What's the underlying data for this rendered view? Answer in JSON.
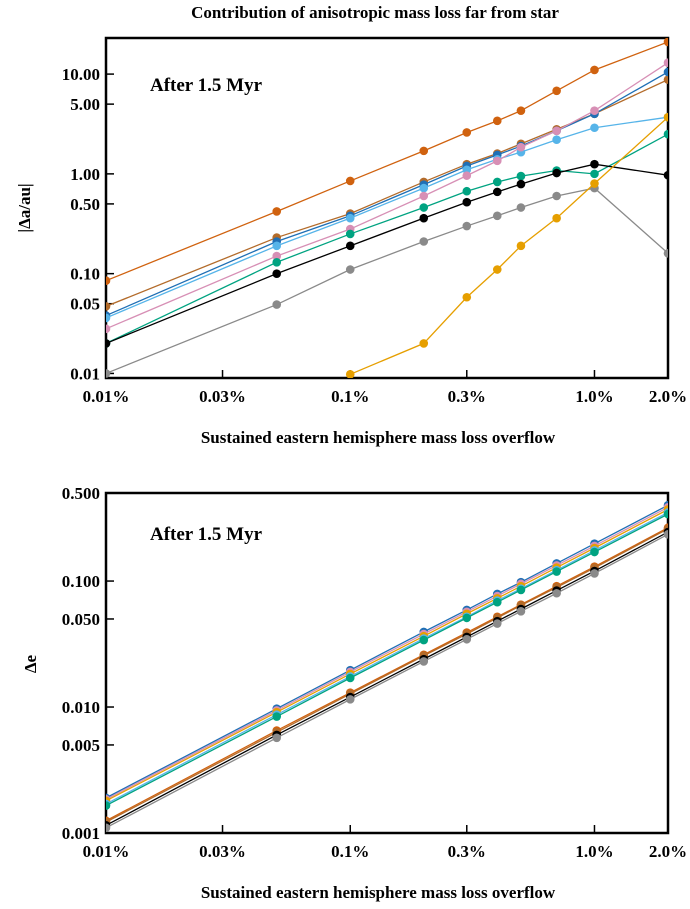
{
  "figure": {
    "title": "Contribution of anisotropic mass loss far from star"
  },
  "chart_data": [
    {
      "type": "line",
      "xscale": "log",
      "yscale": "log",
      "xlim": [
        0.01,
        2.0
      ],
      "ylim": [
        0.009,
        23
      ],
      "xticks": [
        0.01,
        0.03,
        0.1,
        0.3,
        1.0,
        2.0
      ],
      "xtick_labels": [
        "0.01%",
        "0.03%",
        "0.1%",
        "0.3%",
        "1.0%",
        "2.0%"
      ],
      "yticks": [
        0.01,
        0.05,
        0.1,
        0.5,
        1.0,
        5.0,
        10.0
      ],
      "ytick_labels": [
        "0.01",
        "0.05",
        "0.10",
        "0.50",
        "1.00",
        "5.00",
        "10.00"
      ],
      "xlabel": "Sustained eastern hemisphere mass loss overflow",
      "ylabel": "|Δa/au|",
      "annotation": "After 1.5 Myr",
      "grid": false,
      "series": [
        {
          "color": "#d0620f",
          "x": [
            0.01,
            0.05,
            0.1,
            0.2,
            0.3,
            0.4,
            0.5,
            0.7,
            1.0,
            2.0
          ],
          "y": [
            0.085,
            0.42,
            0.85,
            1.7,
            2.6,
            3.4,
            4.3,
            6.8,
            11.0,
            21.0
          ]
        },
        {
          "color": "#b36b2a",
          "x": [
            0.01,
            0.05,
            0.1,
            0.2,
            0.3,
            0.4,
            0.5,
            0.7,
            1.0,
            2.0
          ],
          "y": [
            0.047,
            0.23,
            0.4,
            0.83,
            1.25,
            1.6,
            2.0,
            2.8,
            4.0,
            8.8
          ]
        },
        {
          "color": "#1f6fb5",
          "x": [
            0.01,
            0.05,
            0.1,
            0.2,
            0.3,
            0.4,
            0.5,
            0.7,
            1.0,
            2.0
          ],
          "y": [
            0.038,
            0.21,
            0.38,
            0.78,
            1.2,
            1.55,
            1.9,
            2.7,
            4.0,
            10.5
          ]
        },
        {
          "color": "#56b4e9",
          "x": [
            0.01,
            0.05,
            0.1,
            0.2,
            0.3,
            0.4,
            0.5,
            0.7,
            1.0,
            2.0
          ],
          "y": [
            0.036,
            0.19,
            0.36,
            0.72,
            1.1,
            1.4,
            1.65,
            2.2,
            2.9,
            3.7
          ]
        },
        {
          "color": "#d78fb5",
          "x": [
            0.01,
            0.05,
            0.1,
            0.2,
            0.3,
            0.4,
            0.5,
            0.7,
            1.0,
            2.0
          ],
          "y": [
            0.028,
            0.15,
            0.28,
            0.6,
            0.96,
            1.35,
            1.85,
            2.7,
            4.3,
            13.0
          ]
        },
        {
          "color": "#00a381",
          "x": [
            0.01,
            0.05,
            0.1,
            0.2,
            0.3,
            0.4,
            0.5,
            0.7,
            1.0,
            2.0
          ],
          "y": [
            0.02,
            0.13,
            0.25,
            0.46,
            0.67,
            0.83,
            0.95,
            1.08,
            1.0,
            2.5
          ]
        },
        {
          "color": "#000000",
          "x": [
            0.01,
            0.05,
            0.1,
            0.2,
            0.3,
            0.4,
            0.5,
            0.7,
            1.0,
            2.0
          ],
          "y": [
            0.02,
            0.1,
            0.19,
            0.36,
            0.52,
            0.66,
            0.79,
            1.02,
            1.25,
            0.97
          ]
        },
        {
          "color": "#8a8a8a",
          "x": [
            0.01,
            0.05,
            0.1,
            0.2,
            0.3,
            0.4,
            0.5,
            0.7,
            1.0,
            2.0
          ],
          "y": [
            0.01,
            0.049,
            0.11,
            0.21,
            0.3,
            0.38,
            0.46,
            0.6,
            0.72,
            0.16
          ]
        },
        {
          "color": "#e69f00",
          "x": [
            0.1,
            0.2,
            0.3,
            0.4,
            0.5,
            0.7,
            1.0,
            2.0
          ],
          "y": [
            0.0098,
            0.02,
            0.058,
            0.11,
            0.19,
            0.36,
            0.8,
            3.7
          ]
        }
      ]
    },
    {
      "type": "line",
      "xscale": "log",
      "yscale": "log",
      "xlim": [
        0.01,
        2.0
      ],
      "ylim": [
        0.001,
        0.5
      ],
      "xticks": [
        0.01,
        0.03,
        0.1,
        0.3,
        1.0,
        2.0
      ],
      "xtick_labels": [
        "0.01%",
        "0.03%",
        "0.1%",
        "0.3%",
        "1.0%",
        "2.0%"
      ],
      "yticks": [
        0.001,
        0.005,
        0.01,
        0.05,
        0.1,
        0.5
      ],
      "ytick_labels": [
        "0.001",
        "0.005",
        "0.010",
        "0.050",
        "0.100",
        "0.500"
      ],
      "xlabel": "Sustained eastern hemisphere mass loss overflow",
      "ylabel": "Δe",
      "annotation": "After 1.5 Myr",
      "grid": false,
      "series": [
        {
          "color": "#1f6fb5",
          "x": [
            0.01,
            0.05,
            0.1,
            0.2,
            0.3,
            0.4,
            0.5,
            0.7,
            1.0,
            2.0
          ],
          "y": [
            0.0019,
            0.0097,
            0.0196,
            0.0395,
            0.059,
            0.079,
            0.098,
            0.138,
            0.198,
            0.4
          ]
        },
        {
          "color": "#d78fb5",
          "x": [
            0.01,
            0.05,
            0.1,
            0.2,
            0.3,
            0.4,
            0.5,
            0.7,
            1.0,
            2.0
          ],
          "y": [
            0.00185,
            0.0094,
            0.019,
            0.038,
            0.057,
            0.076,
            0.095,
            0.133,
            0.19,
            0.385
          ]
        },
        {
          "color": "#e69f00",
          "x": [
            0.01,
            0.05,
            0.1,
            0.2,
            0.3,
            0.4,
            0.5,
            0.7,
            1.0,
            2.0
          ],
          "y": [
            0.0018,
            0.0091,
            0.0183,
            0.0365,
            0.055,
            0.073,
            0.091,
            0.128,
            0.183,
            0.37
          ]
        },
        {
          "color": "#56b4e9",
          "x": [
            0.01,
            0.05,
            0.1,
            0.2,
            0.3,
            0.4,
            0.5,
            0.7,
            1.0,
            2.0
          ],
          "y": [
            0.0017,
            0.0087,
            0.0175,
            0.035,
            0.052,
            0.07,
            0.087,
            0.122,
            0.175,
            0.35
          ]
        },
        {
          "color": "#00a381",
          "x": [
            0.01,
            0.05,
            0.1,
            0.2,
            0.3,
            0.4,
            0.5,
            0.7,
            1.0,
            2.0
          ],
          "y": [
            0.00165,
            0.0084,
            0.017,
            0.034,
            0.051,
            0.068,
            0.085,
            0.119,
            0.17,
            0.34
          ]
        },
        {
          "color": "#d0620f",
          "x": [
            0.01,
            0.05,
            0.1,
            0.2,
            0.3,
            0.4,
            0.5,
            0.7,
            1.0,
            2.0
          ],
          "y": [
            0.00125,
            0.0065,
            0.013,
            0.026,
            0.039,
            0.052,
            0.065,
            0.091,
            0.13,
            0.265
          ]
        },
        {
          "color": "#b36b2a",
          "x": [
            0.01,
            0.05,
            0.1,
            0.2,
            0.3,
            0.4,
            0.5,
            0.7,
            1.0,
            2.0
          ],
          "y": [
            0.00122,
            0.0063,
            0.0127,
            0.0255,
            0.038,
            0.051,
            0.064,
            0.089,
            0.127,
            0.26
          ]
        },
        {
          "color": "#000000",
          "x": [
            0.01,
            0.05,
            0.1,
            0.2,
            0.3,
            0.4,
            0.5,
            0.7,
            1.0,
            2.0
          ],
          "y": [
            0.00115,
            0.006,
            0.012,
            0.024,
            0.036,
            0.048,
            0.06,
            0.084,
            0.12,
            0.245
          ]
        },
        {
          "color": "#8a8a8a",
          "x": [
            0.01,
            0.05,
            0.1,
            0.2,
            0.3,
            0.4,
            0.5,
            0.7,
            1.0,
            2.0
          ],
          "y": [
            0.0011,
            0.0057,
            0.0115,
            0.023,
            0.0345,
            0.046,
            0.0575,
            0.08,
            0.115,
            0.235
          ]
        }
      ]
    }
  ]
}
